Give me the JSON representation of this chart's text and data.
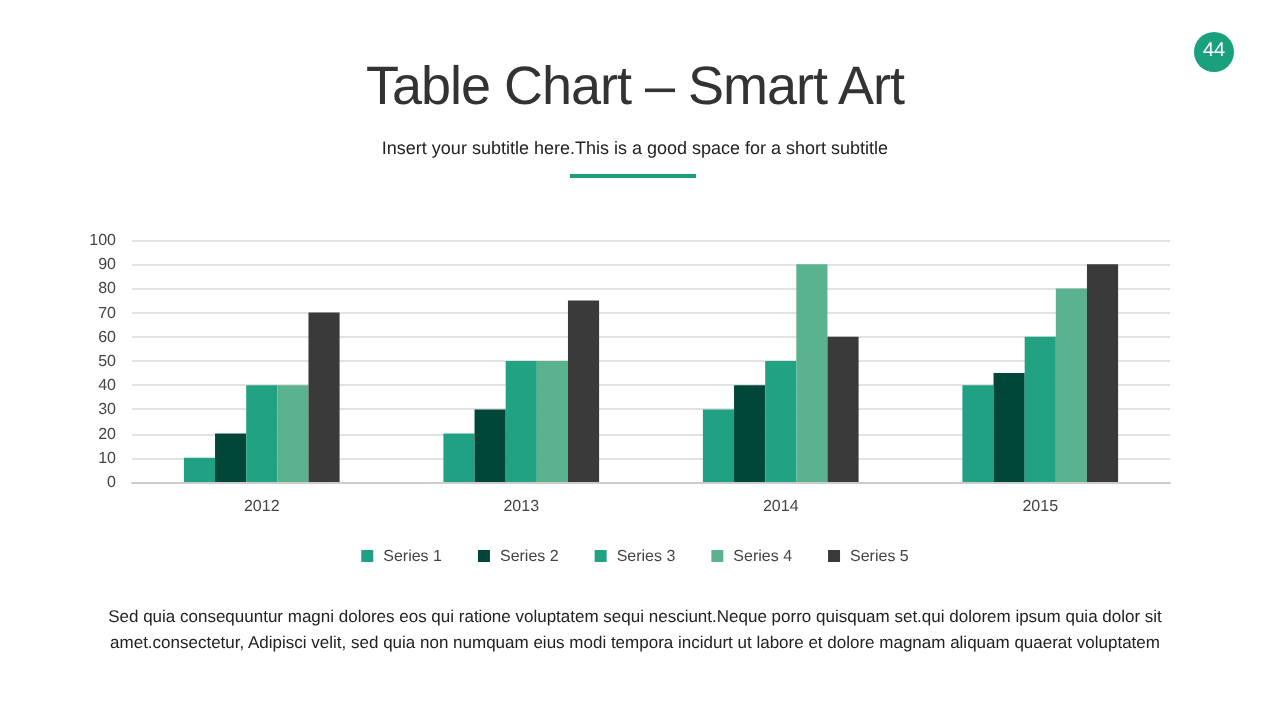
{
  "chart_data": {
    "type": "bar",
    "title": "Table Chart – Smart Art",
    "subtitle": "Insert your subtitle here.This is a good space for a short subtitle",
    "categories": [
      "2012",
      "2013",
      "2014",
      "2015"
    ],
    "series": [
      {
        "name": "Series 1",
        "color": "#20a183",
        "values": [
          10,
          20,
          30,
          40
        ]
      },
      {
        "name": "Series 2",
        "color": "#00473a",
        "values": [
          20,
          30,
          40,
          45
        ]
      },
      {
        "name": "Series 3",
        "color": "#21a383",
        "values": [
          40,
          50,
          50,
          60
        ]
      },
      {
        "name": "Series 4",
        "color": "#5bb28f",
        "values": [
          40,
          50,
          90,
          80
        ]
      },
      {
        "name": "Series 5",
        "color": "#3a3a3a",
        "values": [
          70,
          75,
          60,
          90
        ]
      }
    ],
    "ylim": [
      0,
      100
    ],
    "yticks": [
      0,
      10,
      20,
      30,
      40,
      50,
      60,
      70,
      80,
      90,
      100
    ],
    "grid": "y",
    "legend": "bottom",
    "annotations": [
      "44",
      "Sed quia consequuntur magni dolores eos qui ratione voluptatem sequi nesciunt.Neque porro quisquam set.qui dolorem ipsum quia dolor sit amet.consectetur, Adipisci velit, sed quia non numquam eius modi tempora incidurt ut labore et dolore magnam aliquam quaerat voluptatem"
    ]
  }
}
